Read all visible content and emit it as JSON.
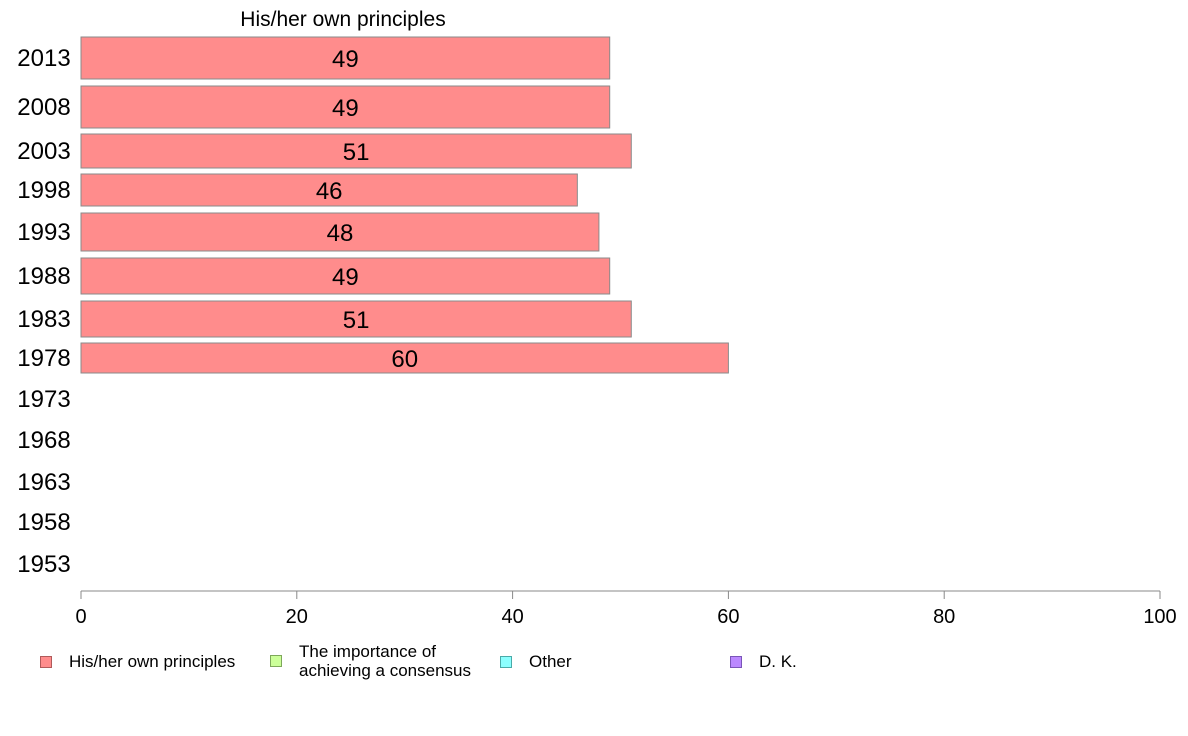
{
  "chart_data": {
    "type": "bar",
    "orientation": "horizontal",
    "stacked": true,
    "title": "His/her own principles",
    "categories": [
      "2013",
      "2008",
      "2003",
      "1998",
      "1993",
      "1988",
      "1983",
      "1978",
      "1973",
      "1968",
      "1963",
      "1958",
      "1953"
    ],
    "series": [
      {
        "name": "His/her own principles",
        "color": "#ff8c8c",
        "values": [
          49,
          49,
          51,
          46,
          48,
          49,
          51,
          60,
          null,
          null,
          null,
          null,
          null
        ]
      },
      {
        "name": "The importance of\nachieving a consensus",
        "color": "#ccff99",
        "values": [
          null,
          null,
          null,
          null,
          null,
          null,
          null,
          null,
          null,
          null,
          null,
          null,
          null
        ]
      },
      {
        "name": "Other",
        "color": "#8cffff",
        "values": [
          null,
          null,
          null,
          null,
          null,
          null,
          null,
          null,
          null,
          null,
          null,
          null,
          null
        ]
      },
      {
        "name": "D. K.",
        "color": "#bb88ff",
        "values": [
          null,
          null,
          null,
          null,
          null,
          null,
          null,
          null,
          null,
          null,
          null,
          null,
          null
        ]
      }
    ],
    "data_labels": [
      49,
      49,
      51,
      46,
      48,
      49,
      51,
      60
    ],
    "xlim": [
      0,
      100
    ],
    "xticks": [
      0,
      20,
      40,
      60,
      80,
      100
    ],
    "grid": false,
    "legend_position": "bottom"
  }
}
